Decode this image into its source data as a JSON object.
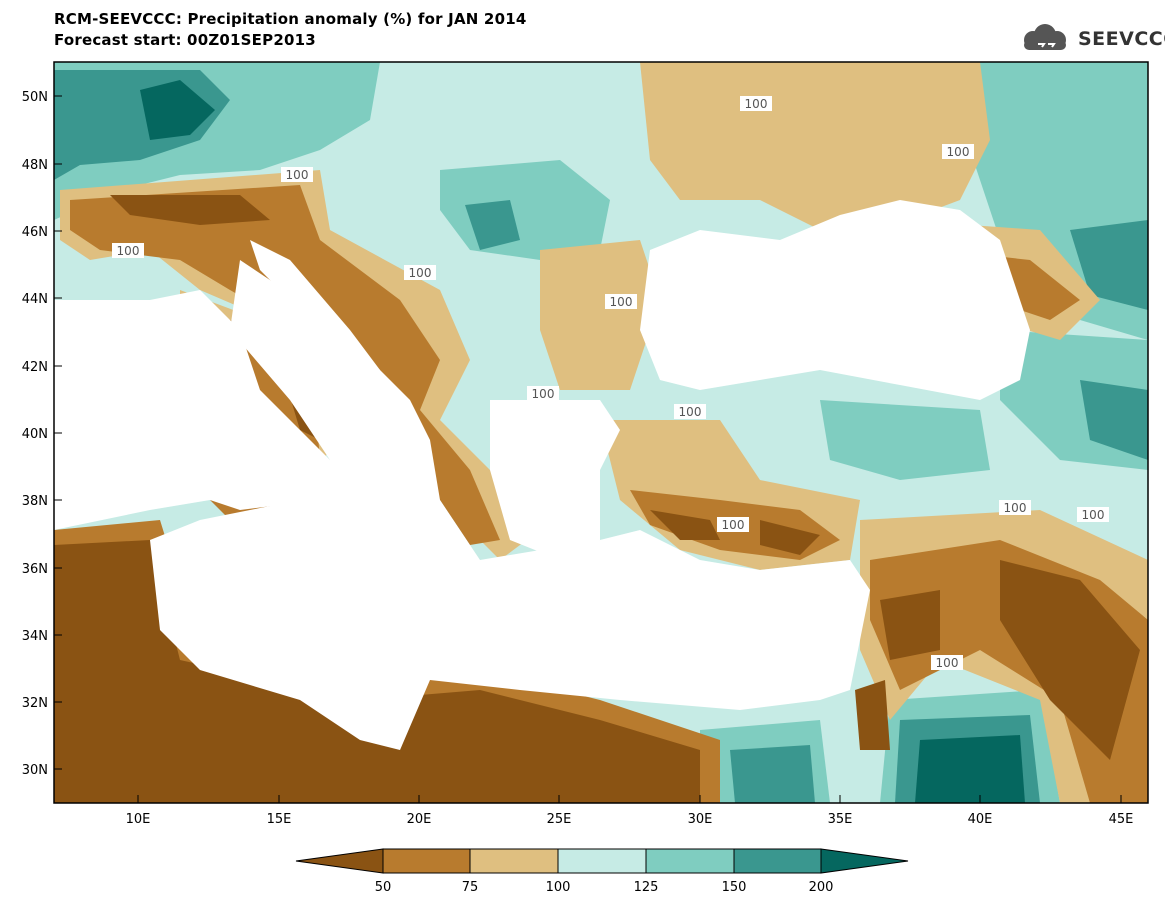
{
  "title": {
    "line1": "RCM-SEEVCCC: Precipitation anomaly (%) for JAN 2014",
    "line2": "Forecast start: 00Z01SEP2013"
  },
  "logo": {
    "text": "SEEVCCC",
    "icon": "cloud-icon"
  },
  "map": {
    "lon_range": [
      7,
      46
    ],
    "lat_range": [
      29,
      51
    ],
    "lat_ticks": [
      "50N",
      "48N",
      "46N",
      "44N",
      "42N",
      "40N",
      "38N",
      "36N",
      "34N",
      "32N",
      "30N"
    ],
    "lon_ticks": [
      "10E",
      "15E",
      "20E",
      "25E",
      "30E",
      "35E",
      "40E",
      "45E"
    ],
    "contour_label": "100"
  },
  "legend": {
    "labels": [
      "50",
      "75",
      "100",
      "125",
      "150",
      "200"
    ],
    "colors": [
      "#8a5313",
      "#b87b2e",
      "#dfbf80",
      "#c6ebe5",
      "#7fcdc0",
      "#3a978f",
      "#05675f"
    ]
  },
  "colors": {
    "land_ocean_bg": "#c6ebe5",
    "sea": "#ffffff"
  }
}
